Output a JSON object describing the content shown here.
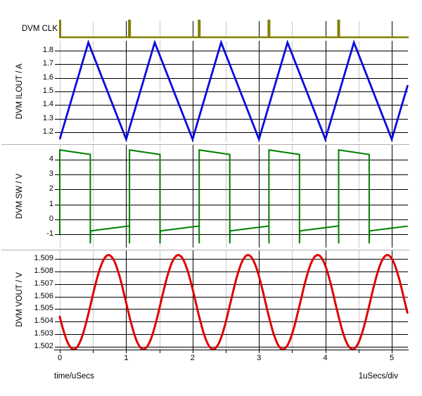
{
  "window": {
    "background": "#FFFFFF"
  },
  "colors": {
    "grid_major": "#000000",
    "grid_minor": "#C8C8C8",
    "separator": "#B0B0B0",
    "axis": "#000000",
    "clk": "#808000",
    "ilout": "#0A0ADF",
    "sw": "#008000",
    "vout": "#E00000"
  },
  "x_axis": {
    "label": "time/uSecs",
    "scale_label": "1uSecs/div",
    "ticks": [
      "0",
      "1",
      "2",
      "3",
      "4",
      "5"
    ],
    "tick_values": [
      0,
      1,
      2,
      3,
      4,
      5
    ],
    "minor_step_us": 0.5,
    "range_us": [
      0,
      5.24
    ]
  },
  "chart_data": [
    {
      "id": "clk",
      "type": "line",
      "waveform": "pulse-train",
      "ylabel": "DVM CLK",
      "color_key": "clk",
      "pulse_times_us": [
        0,
        1.05,
        2.1,
        3.15,
        4.2
      ],
      "period_us": 1.05,
      "x_range_us": [
        0,
        5.24
      ]
    },
    {
      "id": "ilout",
      "type": "line",
      "waveform": "triangle",
      "ylabel": "DVM ILOUT / A",
      "color_key": "ilout",
      "vmin": 1.15,
      "vmax": 1.86,
      "period_us": 1.0,
      "peak_fraction": 0.43,
      "yticks": [
        "1.2",
        "1.3",
        "1.4",
        "1.5",
        "1.6",
        "1.7",
        "1.8"
      ],
      "ytick_values": [
        1.2,
        1.3,
        1.4,
        1.5,
        1.6,
        1.7,
        1.8
      ],
      "ylim": [
        1.13,
        1.88
      ],
      "x_range_us": [
        0,
        5.24
      ]
    },
    {
      "id": "sw",
      "type": "line",
      "waveform": "switching-square",
      "ylabel": "DVM SW / V",
      "color_key": "sw",
      "period_us": 1.05,
      "high_time_us": 0.46,
      "high_start": 4.65,
      "high_end": 4.35,
      "low_start": -0.78,
      "low_end": -0.45,
      "undershoot": -1.62,
      "start_level": -1.0,
      "yticks": [
        "-1",
        "0",
        "1",
        "2",
        "3",
        "4"
      ],
      "ytick_values": [
        -1,
        0,
        1,
        2,
        3,
        4
      ],
      "ylim": [
        -1.8,
        4.9
      ],
      "x_range_us": [
        0,
        5.24
      ]
    },
    {
      "id": "vout",
      "type": "line",
      "waveform": "sine",
      "ylabel": "DVM VOUT / V",
      "color_key": "vout",
      "mid": 1.50555,
      "amplitude": 0.00375,
      "period_us": 1.05,
      "t_max_us": 0.735,
      "yticks": [
        "1.502",
        "1.503",
        "1.504",
        "1.505",
        "1.506",
        "1.507",
        "1.508",
        "1.509"
      ],
      "ytick_values": [
        1.502,
        1.503,
        1.504,
        1.505,
        1.506,
        1.507,
        1.508,
        1.509
      ],
      "ylim": [
        1.5015,
        1.5097
      ],
      "x_range_us": [
        0,
        5.24
      ]
    }
  ]
}
